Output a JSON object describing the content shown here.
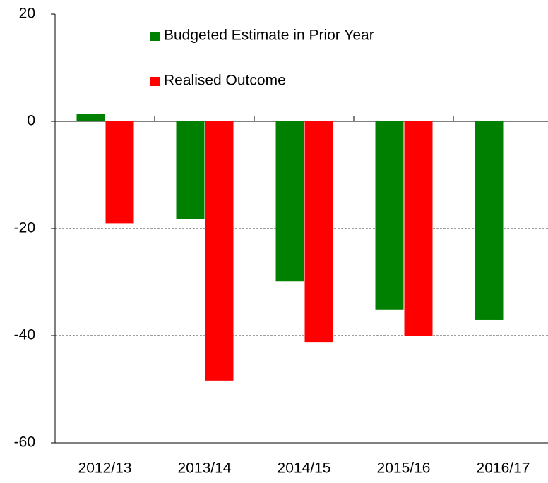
{
  "chart_data": {
    "type": "bar",
    "categories": [
      "2012/13",
      "2013/14",
      "2014/15",
      "2015/16",
      "2016/17"
    ],
    "series": [
      {
        "name": "Budgeted Estimate in Prior Year",
        "color": "#008000",
        "values": [
          1.4,
          -18.2,
          -29.9,
          -35.1,
          -37.1
        ]
      },
      {
        "name": "Realised Outcome",
        "color": "#ff0000",
        "values": [
          -19,
          -48.4,
          -41.2,
          -40,
          null
        ]
      }
    ],
    "ylim": [
      -60,
      20
    ],
    "yticks": [
      -60,
      -40,
      -20,
      0,
      20
    ],
    "grid": true
  }
}
